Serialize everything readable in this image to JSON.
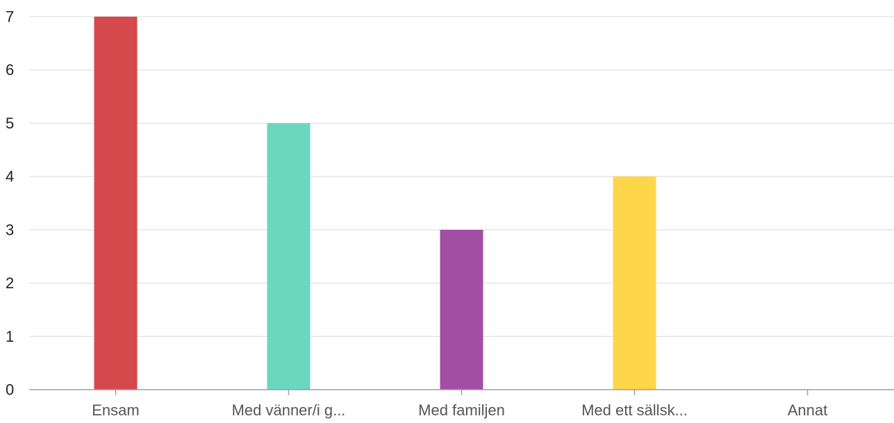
{
  "chart_data": {
    "type": "bar",
    "categories": [
      "Ensam",
      "Med vänner/i g...",
      "Med familjen",
      "Med ett sällsk...",
      "Annat"
    ],
    "values": [
      7,
      5,
      3,
      4,
      0
    ],
    "colors": [
      "#d5484b",
      "#6ad7be",
      "#a24ea3",
      "#fdd64a",
      "#4f81bd"
    ],
    "ylim": [
      0,
      7
    ],
    "yticks": [
      0,
      1,
      2,
      3,
      4,
      5,
      6,
      7
    ],
    "grid": true,
    "legend": "none"
  }
}
